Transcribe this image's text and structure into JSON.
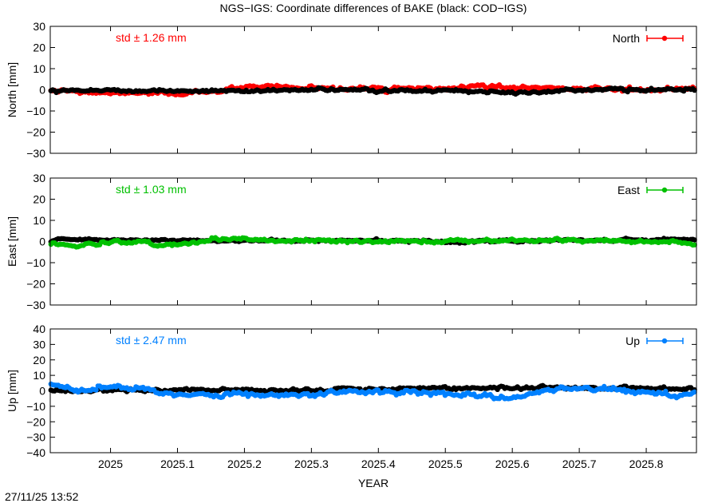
{
  "title": "NGS−IGS: Coordinate differences of BAKE (black: COD−IGS)",
  "footer": "27/11/25 13:52",
  "xlabel": "YEAR",
  "chart_data": [
    {
      "type": "scatter",
      "component": "North",
      "ylabel": "North [mm]",
      "ylim": [
        -30,
        30
      ],
      "yticks": [
        -30,
        -20,
        -10,
        0,
        10,
        20,
        30
      ],
      "xlim": [
        2024.91,
        2025.875
      ],
      "xticks": [
        2025,
        2025.1,
        2025.2,
        2025.3,
        2025.4,
        2025.5,
        2025.6,
        2025.7,
        2025.8
      ],
      "std_text": "std ± 1.26 mm",
      "legend": "North",
      "color": "#ff0000",
      "series": [
        {
          "name": "NGS−IGS",
          "color": "#ff0000",
          "std": 1.26,
          "amp": 1.3,
          "trend": [
            [
              2024.91,
              -0.5
            ],
            [
              2024.98,
              -1.5
            ],
            [
              2025.06,
              -1.5
            ],
            [
              2025.09,
              -2.0
            ],
            [
              2025.13,
              -1.0
            ],
            [
              2025.18,
              0.0
            ],
            [
              2025.2,
              1.5
            ],
            [
              2025.3,
              0.5
            ],
            [
              2025.4,
              0.5
            ],
            [
              2025.5,
              0.5
            ],
            [
              2025.55,
              1.5
            ],
            [
              2025.6,
              1.0
            ],
            [
              2025.7,
              0.5
            ],
            [
              2025.8,
              0.0
            ],
            [
              2025.875,
              0.5
            ]
          ]
        },
        {
          "name": "COD−IGS",
          "color": "#000000",
          "std": 1.0,
          "amp": 1.0,
          "trend": [
            [
              2024.91,
              0.0
            ],
            [
              2025.1,
              -0.5
            ],
            [
              2025.2,
              -0.5
            ],
            [
              2025.3,
              0.0
            ],
            [
              2025.5,
              -0.5
            ],
            [
              2025.6,
              -1.0
            ],
            [
              2025.7,
              0.0
            ],
            [
              2025.875,
              0.0
            ]
          ]
        }
      ]
    },
    {
      "type": "scatter",
      "component": "East",
      "ylabel": "East [mm]",
      "ylim": [
        -30,
        30
      ],
      "yticks": [
        -30,
        -20,
        -10,
        0,
        10,
        20,
        30
      ],
      "xlim": [
        2024.91,
        2025.875
      ],
      "xticks": [
        2025,
        2025.1,
        2025.2,
        2025.3,
        2025.4,
        2025.5,
        2025.6,
        2025.7,
        2025.8
      ],
      "std_text": "std ± 1.03 mm",
      "legend": "East",
      "color": "#00c000",
      "series": [
        {
          "name": "COD−IGS",
          "color": "#000000",
          "std": 1.0,
          "amp": 0.8,
          "trend": [
            [
              2024.91,
              1.0
            ],
            [
              2025.1,
              0.5
            ],
            [
              2025.3,
              0.5
            ],
            [
              2025.5,
              0.0
            ],
            [
              2025.7,
              0.5
            ],
            [
              2025.875,
              1.0
            ]
          ]
        },
        {
          "name": "NGS−IGS",
          "color": "#00c000",
          "std": 1.03,
          "amp": 1.1,
          "trend": [
            [
              2024.91,
              -1.0
            ],
            [
              2024.95,
              -2.0
            ],
            [
              2025.0,
              -0.5
            ],
            [
              2025.05,
              0.0
            ],
            [
              2025.08,
              -2.0
            ],
            [
              2025.12,
              0.0
            ],
            [
              2025.15,
              1.5
            ],
            [
              2025.25,
              0.5
            ],
            [
              2025.4,
              0.0
            ],
            [
              2025.55,
              0.5
            ],
            [
              2025.7,
              0.5
            ],
            [
              2025.8,
              0.0
            ],
            [
              2025.875,
              -1.0
            ]
          ]
        }
      ]
    },
    {
      "type": "scatter",
      "component": "Up",
      "ylabel": "Up [mm]",
      "ylim": [
        -40,
        40
      ],
      "yticks": [
        -40,
        -30,
        -20,
        -10,
        0,
        10,
        20,
        30,
        40
      ],
      "xlim": [
        2024.91,
        2025.875
      ],
      "xticks": [
        2025,
        2025.1,
        2025.2,
        2025.3,
        2025.4,
        2025.5,
        2025.6,
        2025.7,
        2025.8
      ],
      "xticklabels": [
        "2025",
        "2025.1",
        "2025.2",
        "2025.3",
        "2025.4",
        "2025.5",
        "2025.6",
        "2025.7",
        "2025.8"
      ],
      "std_text": "std ± 2.47 mm",
      "legend": "Up",
      "color": "#0080ff",
      "series": [
        {
          "name": "COD−IGS",
          "color": "#000000",
          "std": 1.5,
          "amp": 1.6,
          "trend": [
            [
              2024.91,
              0.0
            ],
            [
              2025.1,
              0.5
            ],
            [
              2025.3,
              0.5
            ],
            [
              2025.5,
              2.0
            ],
            [
              2025.7,
              2.0
            ],
            [
              2025.875,
              1.0
            ]
          ]
        },
        {
          "name": "NGS−IGS",
          "color": "#0080ff",
          "std": 2.47,
          "amp": 2.0,
          "trend": [
            [
              2024.91,
              3.0
            ],
            [
              2024.95,
              0.0
            ],
            [
              2025.0,
              3.0
            ],
            [
              2025.05,
              1.0
            ],
            [
              2025.08,
              -2.0
            ],
            [
              2025.15,
              -3.0
            ],
            [
              2025.2,
              -2.0
            ],
            [
              2025.3,
              -3.0
            ],
            [
              2025.35,
              0.0
            ],
            [
              2025.45,
              -1.0
            ],
            [
              2025.55,
              -3.0
            ],
            [
              2025.6,
              -5.0
            ],
            [
              2025.65,
              0.0
            ],
            [
              2025.7,
              2.0
            ],
            [
              2025.8,
              0.0
            ],
            [
              2025.84,
              -4.0
            ],
            [
              2025.875,
              0.0
            ]
          ]
        }
      ]
    }
  ]
}
